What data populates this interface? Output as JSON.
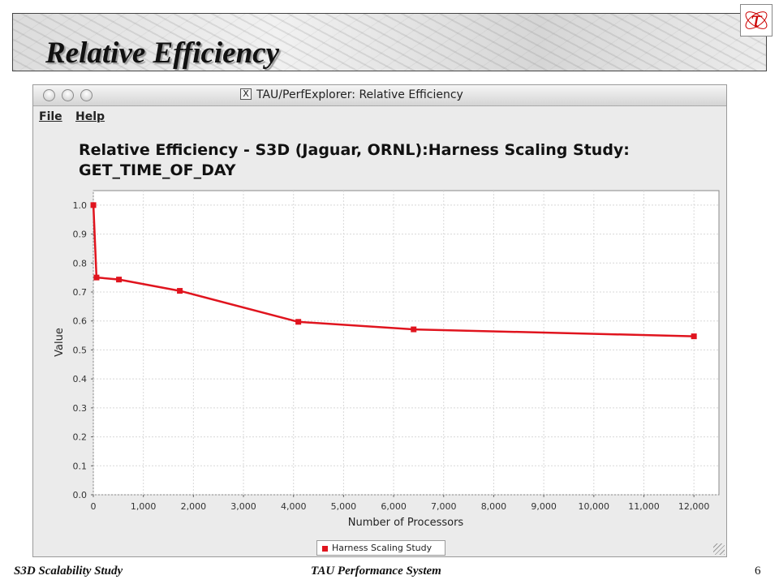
{
  "slide": {
    "title": "Relative Efficiency",
    "logo_glyph": "τ",
    "footer_left": "S3D Scalability Study",
    "footer_center": "TAU Performance System",
    "page_number": "6"
  },
  "window": {
    "title": "TAU/PerfExplorer: Relative Efficiency",
    "x11_glyph": "X",
    "menus": [
      "File",
      "Help"
    ]
  },
  "colors": {
    "series": "#e0141e",
    "logo": "#cc0000"
  },
  "chart_data": {
    "type": "line",
    "title_line1": "Relative Efficiency - S3D (Jaguar, ORNL):Harness Scaling Study:",
    "title_line2": "GET_TIME_OF_DAY",
    "xlabel": "Number of Processors",
    "ylabel": "Value",
    "xlim": [
      0,
      12500
    ],
    "ylim": [
      0,
      1.05
    ],
    "x_ticks": [
      0,
      1000,
      2000,
      3000,
      4000,
      5000,
      6000,
      7000,
      8000,
      9000,
      10000,
      11000,
      12000
    ],
    "x_tick_labels": [
      "0",
      "1,000",
      "2,000",
      "3,000",
      "4,000",
      "5,000",
      "6,000",
      "7,000",
      "8,000",
      "9,000",
      "10,000",
      "11,000",
      "12,000"
    ],
    "y_ticks": [
      0.0,
      0.1,
      0.2,
      0.3,
      0.4,
      0.5,
      0.6,
      0.7,
      0.8,
      0.9,
      1.0
    ],
    "y_tick_labels": [
      "0.0",
      "0.1",
      "0.2",
      "0.3",
      "0.4",
      "0.5",
      "0.6",
      "0.7",
      "0.8",
      "0.9",
      "1.0"
    ],
    "grid": true,
    "legend_position": "bottom-center",
    "series": [
      {
        "name": "Harness Scaling Study",
        "color": "#e0141e",
        "x": [
          1,
          64,
          512,
          1728,
          4096,
          6400,
          12000
        ],
        "values": [
          1.0,
          0.75,
          0.743,
          0.704,
          0.597,
          0.571,
          0.547
        ]
      }
    ]
  }
}
